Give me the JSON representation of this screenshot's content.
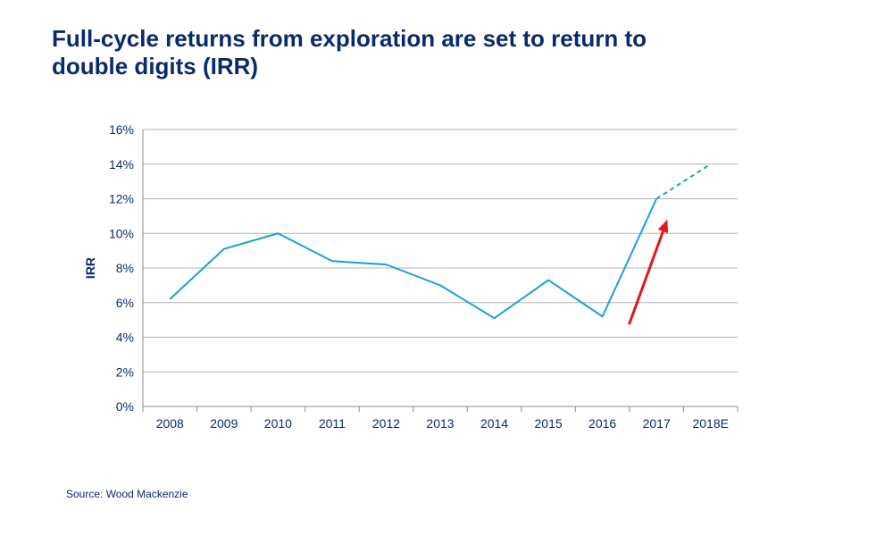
{
  "title_lines": [
    "Full-cycle returns from exploration are set to return to",
    "double digits (IRR)"
  ],
  "source": "Source: Wood Mackenzie",
  "chart_data": {
    "type": "line",
    "title": "Full-cycle returns from exploration are set to return to double digits (IRR)",
    "xlabel": "",
    "ylabel": "IRR",
    "categories": [
      "2008",
      "2009",
      "2010",
      "2011",
      "2012",
      "2013",
      "2014",
      "2015",
      "2016",
      "2017",
      "2018E"
    ],
    "ylim": [
      0,
      16
    ],
    "yticks": [
      0,
      2,
      4,
      6,
      8,
      10,
      12,
      14,
      16
    ],
    "ytick_labels": [
      "0%",
      "2%",
      "4%",
      "6%",
      "8%",
      "10%",
      "12%",
      "14%",
      "16%"
    ],
    "grid": true,
    "series": [
      {
        "name": "IRR",
        "values": [
          6.2,
          9.1,
          10.0,
          8.4,
          8.2,
          7.0,
          5.1,
          7.3,
          5.2,
          12.0,
          null
        ],
        "style": "solid",
        "color": "#1a9fd9"
      },
      {
        "name": "IRR (estimate)",
        "values": [
          null,
          null,
          null,
          null,
          null,
          null,
          null,
          null,
          null,
          12.0,
          14.0
        ],
        "style": "dashed",
        "color": "#1a9fd9"
      }
    ],
    "annotations": [
      {
        "type": "arrow",
        "color": "#e8141c",
        "from": {
          "x": 8.5,
          "y": 4.8
        },
        "to": {
          "x": 9.2,
          "y": 10.8
        }
      }
    ]
  },
  "colors": {
    "title": "#0a2b6b",
    "grid": "#b4b4b4",
    "line": "#1a9fd9",
    "arrow": "#e8141c"
  }
}
